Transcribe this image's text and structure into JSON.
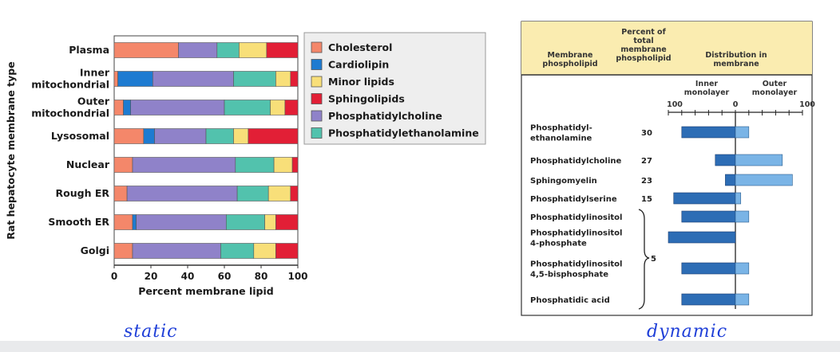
{
  "chart_data": [
    {
      "type": "bar",
      "stacked": true,
      "orientation": "horizontal",
      "ylabel": "Rat hepatocyte membrane type",
      "xlabel": "Percent membrane lipid",
      "xlim": [
        0,
        100
      ],
      "xticks": [
        "0",
        "20",
        "40",
        "60",
        "80",
        "100"
      ],
      "categories": [
        "Plasma",
        "Inner\nmitochondrial",
        "Outer\nmitochondrial",
        "Lysosomal",
        "Nuclear",
        "Rough ER",
        "Smooth ER",
        "Golgi"
      ],
      "legend_position": "right",
      "series": [
        {
          "name": "Cholesterol",
          "color": "#f4876a",
          "values": [
            35,
            2,
            5,
            16,
            10,
            7,
            10,
            10
          ]
        },
        {
          "name": "Cardiolipin",
          "color": "#1e7bd1",
          "values": [
            0,
            19,
            4,
            6,
            0,
            0,
            2,
            0
          ]
        },
        {
          "name": "Phosphatidylcholine",
          "color": "#8f82c9",
          "values": [
            21,
            44,
            51,
            28,
            56,
            60,
            49,
            48
          ]
        },
        {
          "name": "Phosphatidylethanolamine",
          "color": "#52c2ad",
          "values": [
            12,
            23,
            25,
            15,
            21,
            17,
            21,
            18
          ]
        },
        {
          "name": "Minor lipids",
          "color": "#f8df79",
          "values": [
            15,
            8,
            8,
            8,
            10,
            12,
            6,
            12
          ]
        },
        {
          "name": "Sphingolipids",
          "color": "#e21f36",
          "values": [
            17,
            4,
            7,
            27,
            3,
            4,
            12,
            12
          ]
        }
      ],
      "legend_order": [
        "Cholesterol",
        "Cardiolipin",
        "Minor lipids",
        "Sphingolipids",
        "Phosphatidylcholine",
        "Phosphatidylethanolamine"
      ]
    },
    {
      "type": "bar",
      "orientation": "horizontal",
      "headers": {
        "phospholipid": "Membrane\nphospholipid",
        "percent": "Percent of\ntotal\nmembrane\nphospholipid",
        "distribution": "Distribution in\nmembrane",
        "inner": "Inner\nmonolayer",
        "outer": "Outer\nmonolayer"
      },
      "axis_ticks": [
        "100",
        "0",
        "100"
      ],
      "rows": [
        {
          "name": "Phosphatidyl-\nethanolamine",
          "percent": "30",
          "inner": 80,
          "outer": 20
        },
        {
          "name": "Phosphatidylcholine",
          "percent": "27",
          "inner": 30,
          "outer": 70
        },
        {
          "name": "Sphingomyelin",
          "percent": "23",
          "inner": 15,
          "outer": 85
        },
        {
          "name": "Phosphatidylserine",
          "percent": "15",
          "inner": 92,
          "outer": 8
        },
        {
          "name": "Phosphatidylinositol",
          "percent": "",
          "inner": 80,
          "outer": 20
        },
        {
          "name": "Phosphatidylinositol\n4-phosphate",
          "percent": "",
          "inner": 100,
          "outer": 0
        },
        {
          "name": "Phosphatidylinositol\n4,5-bisphosphate",
          "percent": "",
          "inner": 80,
          "outer": 20
        },
        {
          "name": "Phosphatidic acid",
          "percent": "",
          "inner": 80,
          "outer": 20
        }
      ],
      "group_percent": "5",
      "inner_color": "#2d6db5",
      "outer_color": "#7ab4e6"
    }
  ],
  "annotations": {
    "left": "static",
    "right": "dynamic"
  }
}
